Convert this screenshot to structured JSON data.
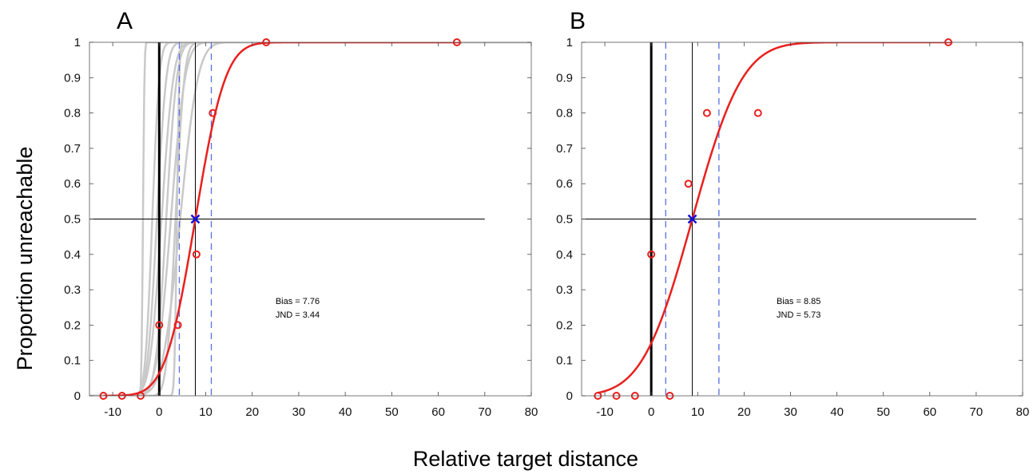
{
  "figure": {
    "ylabel": "Proportion unreachable",
    "xlabel": "Relative target distance"
  },
  "chart_data": [
    {
      "type": "scatter",
      "panel_label": "A",
      "xlim": [
        -15,
        80
      ],
      "ylim": [
        0,
        1
      ],
      "xticks": [
        -10,
        0,
        10,
        20,
        30,
        40,
        50,
        60,
        70,
        80
      ],
      "yticks": [
        0,
        0.1,
        0.2,
        0.3,
        0.4,
        0.5,
        0.6,
        0.7,
        0.8,
        0.9,
        1
      ],
      "xtick_labels": [
        "-10",
        "0",
        "10",
        "20",
        "30",
        "40",
        "50",
        "60",
        "70",
        "80"
      ],
      "ytick_labels": [
        "0",
        "0.1",
        "0.2",
        "0.3",
        "0.4",
        "0.5",
        "0.6",
        "0.7",
        "0.8",
        "0.9",
        "1"
      ],
      "grid": false,
      "points": {
        "x": [
          -12,
          -8,
          -4,
          0,
          4,
          8,
          11.5,
          23,
          64
        ],
        "y": [
          0,
          0,
          0,
          0.2,
          0.2,
          0.4,
          0.8,
          1,
          1
        ],
        "color": "#e8201e"
      },
      "fit": {
        "bias": 7.76,
        "jnd": 3.44,
        "color": "#e8201e"
      },
      "gray_fits": [
        {
          "mu": -3.5,
          "s": 0.25
        },
        {
          "mu": -1.5,
          "s": 1.2
        },
        {
          "mu": -0.5,
          "s": 1.6
        },
        {
          "mu": 0.5,
          "s": 2.0
        },
        {
          "mu": 1.5,
          "s": 1.8
        },
        {
          "mu": 2.5,
          "s": 2.4
        },
        {
          "mu": 3.5,
          "s": 1.5
        },
        {
          "mu": 4.5,
          "s": 3.0
        },
        {
          "mu": 3.8,
          "s": 0.4
        }
      ],
      "gray_color": "#c9c9c9",
      "pse_marker": {
        "x": 7.76,
        "y": 0.5,
        "color": "#1010dd"
      },
      "reference_x": 0,
      "h_line_y": 0.5,
      "h_line_xmax": 70,
      "jnd_lines_x": [
        4.32,
        11.2
      ],
      "jnd_color": "#5a6fe0",
      "annotation": {
        "bias_text": "Bias = 7.76",
        "jnd_text": "JND = 3.44",
        "x": 25,
        "y": 0.26
      }
    },
    {
      "type": "scatter",
      "panel_label": "B",
      "xlim": [
        -15,
        80
      ],
      "ylim": [
        0,
        1
      ],
      "xticks": [
        -10,
        0,
        10,
        20,
        30,
        40,
        50,
        60,
        70,
        80
      ],
      "yticks": [
        0,
        0.1,
        0.2,
        0.3,
        0.4,
        0.5,
        0.6,
        0.7,
        0.8,
        0.9,
        1
      ],
      "xtick_labels": [
        "-10",
        "0",
        "10",
        "20",
        "30",
        "40",
        "50",
        "60",
        "70",
        "80"
      ],
      "ytick_labels": [
        "0",
        "0.1",
        "0.2",
        "0.3",
        "0.4",
        "0.5",
        "0.6",
        "0.7",
        "0.8",
        "0.9",
        "1"
      ],
      "grid": false,
      "points": {
        "x": [
          -11.5,
          -7.5,
          -3.5,
          0,
          4,
          8,
          12,
          23,
          64
        ],
        "y": [
          0,
          0,
          0,
          0.4,
          0,
          0.6,
          0.8,
          0.8,
          1
        ],
        "color": "#e8201e"
      },
      "fit": {
        "bias": 8.85,
        "jnd": 5.73,
        "color": "#e8201e"
      },
      "gray_fits": [],
      "gray_color": "#c9c9c9",
      "pse_marker": {
        "x": 8.85,
        "y": 0.5,
        "color": "#1010dd"
      },
      "reference_x": 0,
      "h_line_y": 0.5,
      "h_line_xmax": 70,
      "jnd_lines_x": [
        3.12,
        14.58
      ],
      "jnd_color": "#5a6fe0",
      "annotation": {
        "bias_text": "Bias = 8.85",
        "jnd_text": "JND = 5.73",
        "x": 27,
        "y": 0.26
      }
    }
  ]
}
